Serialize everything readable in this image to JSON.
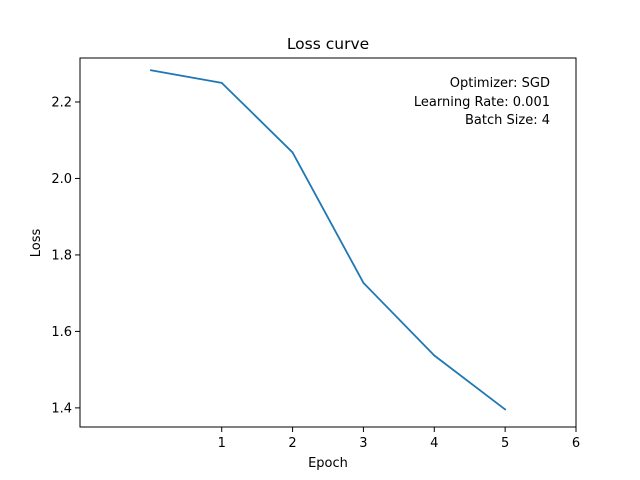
{
  "chart_data": {
    "type": "line",
    "title": "Loss curve",
    "xlabel": "Epoch",
    "ylabel": "Loss",
    "xlim": [
      -1.0,
      6.0
    ],
    "ylim": [
      1.35,
      2.315
    ],
    "xticks": [
      1,
      2,
      3,
      4,
      5,
      6
    ],
    "yticks": [
      1.4,
      1.6,
      1.8,
      2.0,
      2.2
    ],
    "xtick_labels": [
      "1",
      "2",
      "3",
      "4",
      "5",
      "6"
    ],
    "ytick_labels": [
      "1.4",
      "1.6",
      "1.8",
      "2.0",
      "2.2"
    ],
    "grid": false,
    "series": [
      {
        "x": [
          0,
          1,
          2,
          3,
          4,
          5
        ],
        "values": [
          2.283,
          2.25,
          2.068,
          1.727,
          1.537,
          1.396
        ],
        "color": "#1f77b4"
      }
    ],
    "annotations": [
      "Optimizer: SGD",
      "Learning Rate: 0.001",
      "Batch Size: 4"
    ],
    "annotation_placement": "top-right"
  }
}
